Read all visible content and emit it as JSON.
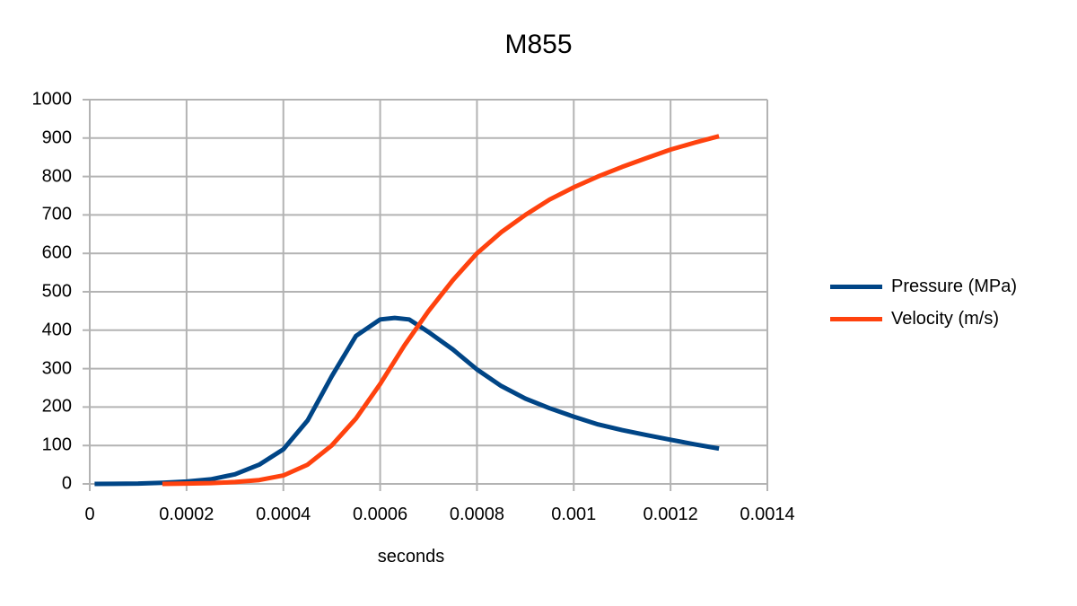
{
  "chart_data": {
    "type": "line",
    "title": "M855",
    "xlabel": "seconds",
    "ylabel": "",
    "xlim": [
      0,
      0.0014
    ],
    "ylim": [
      0,
      1000
    ],
    "x_ticks": [
      "0",
      "0.0002",
      "0.0004",
      "0.0006",
      "0.0008",
      "0.001",
      "0.0012",
      "0.0014"
    ],
    "y_ticks": [
      "0",
      "100",
      "200",
      "300",
      "400",
      "500",
      "600",
      "700",
      "800",
      "900",
      "1000"
    ],
    "grid": true,
    "legend_position": "right",
    "series": [
      {
        "name": "Pressure (MPa)",
        "color": "#004586",
        "x": [
          1e-05,
          0.0001,
          0.00015,
          0.0002,
          0.00025,
          0.0003,
          0.00035,
          0.0004,
          0.00045,
          0.0005,
          0.00055,
          0.0006,
          0.00063,
          0.00066,
          0.0007,
          0.00075,
          0.0008,
          0.00085,
          0.0009,
          0.00095,
          0.001,
          0.00105,
          0.0011,
          0.00115,
          0.0012,
          0.00125,
          0.0013
        ],
        "values": [
          0,
          1,
          3,
          6,
          12,
          25,
          50,
          90,
          165,
          280,
          385,
          428,
          432,
          428,
          395,
          350,
          298,
          255,
          222,
          197,
          175,
          155,
          140,
          127,
          115,
          103,
          92
        ]
      },
      {
        "name": "Velocity (m/s)",
        "color": "#ff420e",
        "x": [
          0.00015,
          0.0002,
          0.00025,
          0.0003,
          0.00035,
          0.0004,
          0.00045,
          0.0005,
          0.00055,
          0.0006,
          0.00065,
          0.0007,
          0.00075,
          0.0008,
          0.00085,
          0.0009,
          0.00095,
          0.001,
          0.00105,
          0.0011,
          0.00115,
          0.0012,
          0.00125,
          0.0013
        ],
        "values": [
          0,
          1,
          2,
          5,
          10,
          22,
          50,
          100,
          170,
          260,
          360,
          450,
          530,
          600,
          655,
          700,
          740,
          772,
          800,
          825,
          848,
          870,
          888,
          905
        ]
      }
    ]
  },
  "chart": {
    "title": "M855",
    "xlabel": "seconds",
    "legend": [
      {
        "label": "Pressure (MPa)",
        "color": "#004586"
      },
      {
        "label": "Velocity (m/s)",
        "color": "#ff420e"
      }
    ],
    "grid_color": "#b3b3b3"
  }
}
